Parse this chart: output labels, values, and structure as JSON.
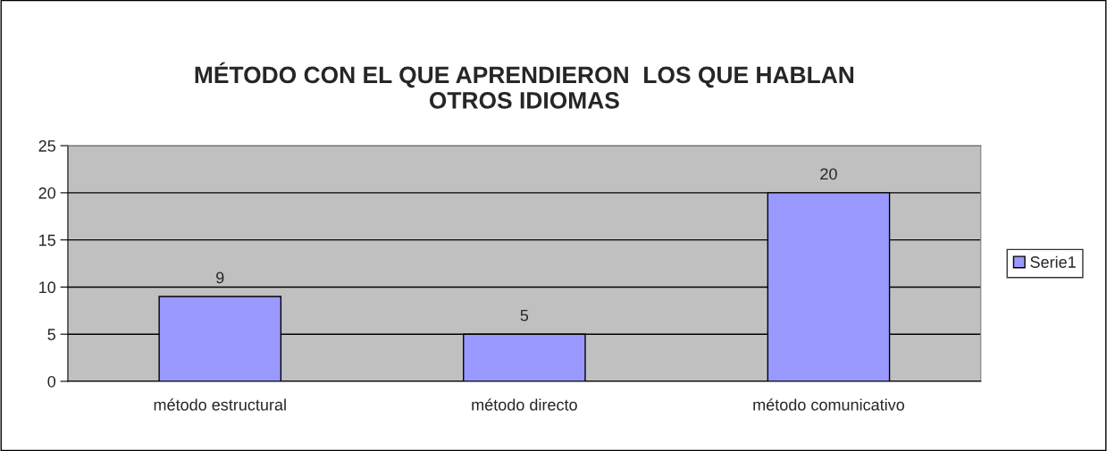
{
  "chart_data": {
    "type": "bar",
    "title": "MÉTODO CON EL QUE APRENDIERON  LOS QUE HABLAN\nOTROS IDIOMAS",
    "categories": [
      "método estructural",
      "método directo",
      "método comunicativo"
    ],
    "series": [
      {
        "name": "Serie1",
        "color": "#9999ff",
        "values": [
          9,
          5,
          20
        ]
      }
    ],
    "ylim": [
      0,
      25
    ],
    "yticks": [
      0,
      5,
      10,
      15,
      20,
      25
    ],
    "grid": "y",
    "legend": "right",
    "data_labels": true
  }
}
